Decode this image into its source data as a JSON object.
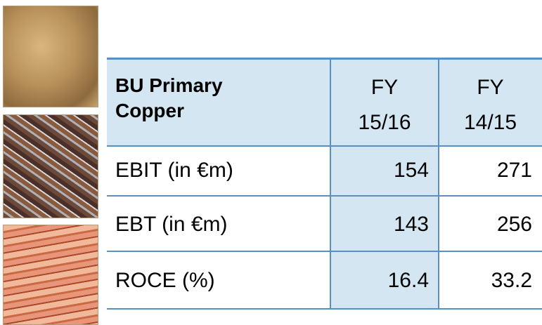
{
  "table": {
    "header": [
      [
        "BU Primary",
        "Copper"
      ],
      [
        "FY",
        "15/16"
      ],
      [
        "FY",
        "14/15"
      ]
    ],
    "rows": [
      [
        "EBIT (in €m)",
        154,
        271
      ],
      [
        "EBT (in €m)",
        143,
        256
      ],
      [
        "ROCE (%)",
        16.4,
        33.2
      ]
    ]
  }
}
